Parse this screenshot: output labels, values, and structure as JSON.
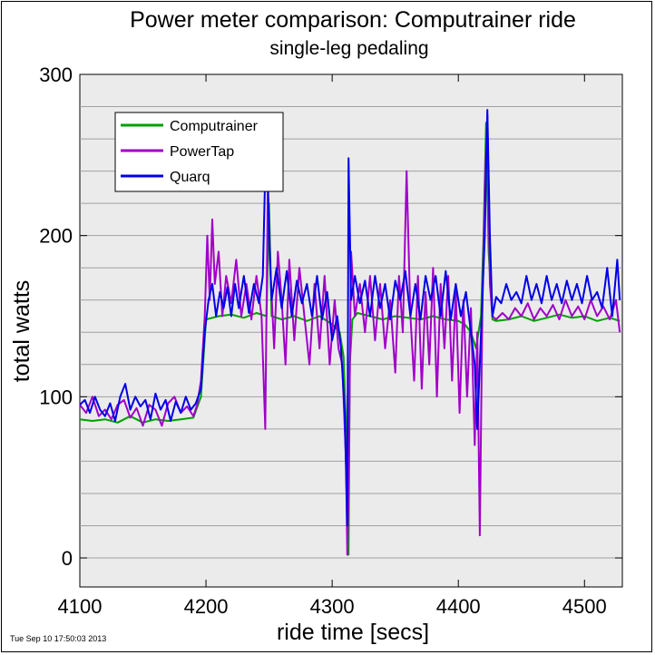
{
  "chart_data": {
    "type": "line",
    "title": "Power meter comparison: Computrainer ride",
    "subtitle": "single-leg pedaling",
    "xlabel": "ride time [secs]",
    "ylabel": "total watts",
    "xlim": [
      4100,
      4530
    ],
    "ylim": [
      -18,
      300
    ],
    "x_ticks": [
      4100,
      4200,
      4300,
      4400,
      4500
    ],
    "y_ticks": [
      0,
      100,
      200,
      300
    ],
    "y_gridlines": [
      0,
      20,
      40,
      60,
      80,
      100,
      120,
      140,
      160,
      180,
      200,
      220,
      240,
      260,
      280
    ],
    "grid": true,
    "legend_position": "top-left",
    "timestamp": "Tue Sep 10 17:50:03 2013",
    "series": [
      {
        "name": "Computrainer",
        "color": "#00a000",
        "points": [
          [
            4100,
            86
          ],
          [
            4110,
            85
          ],
          [
            4120,
            86
          ],
          [
            4130,
            84
          ],
          [
            4140,
            88
          ],
          [
            4150,
            84
          ],
          [
            4160,
            86
          ],
          [
            4170,
            85
          ],
          [
            4180,
            86
          ],
          [
            4190,
            87
          ],
          [
            4196,
            100
          ],
          [
            4200,
            148
          ],
          [
            4210,
            150
          ],
          [
            4220,
            151
          ],
          [
            4230,
            149
          ],
          [
            4240,
            152
          ],
          [
            4248,
            150
          ],
          [
            4250,
            220
          ],
          [
            4252,
            150
          ],
          [
            4260,
            148
          ],
          [
            4270,
            150
          ],
          [
            4280,
            147
          ],
          [
            4290,
            150
          ],
          [
            4300,
            145
          ],
          [
            4306,
            140
          ],
          [
            4309,
            125
          ],
          [
            4312,
            60
          ],
          [
            4313,
            2
          ],
          [
            4314,
            120
          ],
          [
            4316,
            148
          ],
          [
            4320,
            152
          ],
          [
            4330,
            150
          ],
          [
            4340,
            148
          ],
          [
            4350,
            150
          ],
          [
            4360,
            149
          ],
          [
            4370,
            148
          ],
          [
            4380,
            150
          ],
          [
            4390,
            148
          ],
          [
            4400,
            147
          ],
          [
            4405,
            145
          ],
          [
            4410,
            140
          ],
          [
            4414,
            130
          ],
          [
            4418,
            150
          ],
          [
            4420,
            200
          ],
          [
            4422,
            270
          ],
          [
            4424,
            190
          ],
          [
            4427,
            148
          ],
          [
            4430,
            147
          ],
          [
            4440,
            148
          ],
          [
            4450,
            150
          ],
          [
            4460,
            147
          ],
          [
            4470,
            149
          ],
          [
            4480,
            151
          ],
          [
            4490,
            149
          ],
          [
            4500,
            150
          ],
          [
            4510,
            147
          ],
          [
            4520,
            149
          ],
          [
            4528,
            147
          ]
        ]
      },
      {
        "name": "PowerTap",
        "color": "#a000c8",
        "points": [
          [
            4100,
            95
          ],
          [
            4105,
            90
          ],
          [
            4110,
            100
          ],
          [
            4115,
            88
          ],
          [
            4120,
            92
          ],
          [
            4125,
            86
          ],
          [
            4130,
            95
          ],
          [
            4135,
            98
          ],
          [
            4140,
            87
          ],
          [
            4145,
            93
          ],
          [
            4150,
            82
          ],
          [
            4155,
            95
          ],
          [
            4160,
            92
          ],
          [
            4165,
            82
          ],
          [
            4170,
            96
          ],
          [
            4175,
            100
          ],
          [
            4180,
            90
          ],
          [
            4185,
            94
          ],
          [
            4190,
            88
          ],
          [
            4193,
            95
          ],
          [
            4196,
            110
          ],
          [
            4199,
            150
          ],
          [
            4201,
            200
          ],
          [
            4203,
            160
          ],
          [
            4205,
            210
          ],
          [
            4207,
            170
          ],
          [
            4210,
            190
          ],
          [
            4213,
            150
          ],
          [
            4216,
            175
          ],
          [
            4220,
            158
          ],
          [
            4224,
            185
          ],
          [
            4228,
            150
          ],
          [
            4232,
            170
          ],
          [
            4236,
            148
          ],
          [
            4240,
            175
          ],
          [
            4244,
            150
          ],
          [
            4247,
            80
          ],
          [
            4249,
            230
          ],
          [
            4251,
            180
          ],
          [
            4254,
            130
          ],
          [
            4257,
            190
          ],
          [
            4260,
            160
          ],
          [
            4263,
            120
          ],
          [
            4266,
            185
          ],
          [
            4270,
            135
          ],
          [
            4274,
            180
          ],
          [
            4278,
            150
          ],
          [
            4282,
            120
          ],
          [
            4286,
            170
          ],
          [
            4290,
            130
          ],
          [
            4294,
            175
          ],
          [
            4298,
            120
          ],
          [
            4302,
            160
          ],
          [
            4305,
            130
          ],
          [
            4308,
            120
          ],
          [
            4311,
            60
          ],
          [
            4312,
            2
          ],
          [
            4313,
            40
          ],
          [
            4315,
            190
          ],
          [
            4318,
            150
          ],
          [
            4322,
            170
          ],
          [
            4326,
            140
          ],
          [
            4330,
            175
          ],
          [
            4334,
            135
          ],
          [
            4338,
            170
          ],
          [
            4342,
            130
          ],
          [
            4346,
            160
          ],
          [
            4350,
            115
          ],
          [
            4353,
            175
          ],
          [
            4356,
            140
          ],
          [
            4359,
            240
          ],
          [
            4362,
            150
          ],
          [
            4365,
            110
          ],
          [
            4368,
            175
          ],
          [
            4371,
            105
          ],
          [
            4374,
            165
          ],
          [
            4377,
            120
          ],
          [
            4380,
            180
          ],
          [
            4383,
            100
          ],
          [
            4386,
            170
          ],
          [
            4389,
            130
          ],
          [
            4392,
            175
          ],
          [
            4395,
            110
          ],
          [
            4398,
            165
          ],
          [
            4401,
            90
          ],
          [
            4404,
            160
          ],
          [
            4407,
            100
          ],
          [
            4410,
            155
          ],
          [
            4413,
            70
          ],
          [
            4415,
            140
          ],
          [
            4417,
            14
          ],
          [
            4419,
            150
          ],
          [
            4421,
            230
          ],
          [
            4423,
            275
          ],
          [
            4425,
            170
          ],
          [
            4427,
            150
          ],
          [
            4430,
            148
          ],
          [
            4435,
            152
          ],
          [
            4440,
            148
          ],
          [
            4445,
            155
          ],
          [
            4450,
            150
          ],
          [
            4455,
            158
          ],
          [
            4460,
            148
          ],
          [
            4465,
            155
          ],
          [
            4470,
            150
          ],
          [
            4475,
            157
          ],
          [
            4480,
            148
          ],
          [
            4485,
            160
          ],
          [
            4490,
            150
          ],
          [
            4495,
            156
          ],
          [
            4500,
            148
          ],
          [
            4505,
            160
          ],
          [
            4510,
            150
          ],
          [
            4515,
            156
          ],
          [
            4520,
            148
          ],
          [
            4525,
            160
          ],
          [
            4528,
            140
          ]
        ]
      },
      {
        "name": "Quarq",
        "color": "#0000e6",
        "points": [
          [
            4100,
            95
          ],
          [
            4104,
            98
          ],
          [
            4108,
            90
          ],
          [
            4112,
            100
          ],
          [
            4116,
            92
          ],
          [
            4120,
            88
          ],
          [
            4124,
            96
          ],
          [
            4128,
            85
          ],
          [
            4132,
            100
          ],
          [
            4136,
            108
          ],
          [
            4140,
            92
          ],
          [
            4144,
            100
          ],
          [
            4148,
            94
          ],
          [
            4152,
            98
          ],
          [
            4156,
            86
          ],
          [
            4160,
            102
          ],
          [
            4164,
            92
          ],
          [
            4168,
            98
          ],
          [
            4172,
            85
          ],
          [
            4176,
            97
          ],
          [
            4180,
            90
          ],
          [
            4184,
            100
          ],
          [
            4188,
            92
          ],
          [
            4192,
            96
          ],
          [
            4196,
            105
          ],
          [
            4199,
            140
          ],
          [
            4202,
            160
          ],
          [
            4205,
            170
          ],
          [
            4208,
            150
          ],
          [
            4211,
            165
          ],
          [
            4214,
            155
          ],
          [
            4217,
            168
          ],
          [
            4220,
            150
          ],
          [
            4223,
            170
          ],
          [
            4226,
            155
          ],
          [
            4230,
            175
          ],
          [
            4234,
            152
          ],
          [
            4238,
            170
          ],
          [
            4242,
            158
          ],
          [
            4245,
            175
          ],
          [
            4248,
            275
          ],
          [
            4250,
            200
          ],
          [
            4252,
            160
          ],
          [
            4256,
            180
          ],
          [
            4260,
            155
          ],
          [
            4264,
            178
          ],
          [
            4268,
            150
          ],
          [
            4272,
            172
          ],
          [
            4276,
            158
          ],
          [
            4280,
            170
          ],
          [
            4284,
            150
          ],
          [
            4288,
            175
          ],
          [
            4292,
            148
          ],
          [
            4296,
            165
          ],
          [
            4300,
            135
          ],
          [
            4304,
            150
          ],
          [
            4307,
            130
          ],
          [
            4310,
            90
          ],
          [
            4312,
            20
          ],
          [
            4313,
            248
          ],
          [
            4315,
            160
          ],
          [
            4318,
            175
          ],
          [
            4322,
            158
          ],
          [
            4326,
            172
          ],
          [
            4330,
            150
          ],
          [
            4334,
            175
          ],
          [
            4338,
            155
          ],
          [
            4342,
            170
          ],
          [
            4346,
            148
          ],
          [
            4350,
            172
          ],
          [
            4354,
            160
          ],
          [
            4358,
            178
          ],
          [
            4362,
            150
          ],
          [
            4366,
            170
          ],
          [
            4370,
            148
          ],
          [
            4374,
            175
          ],
          [
            4378,
            160
          ],
          [
            4382,
            175
          ],
          [
            4386,
            150
          ],
          [
            4390,
            178
          ],
          [
            4394,
            148
          ],
          [
            4398,
            170
          ],
          [
            4402,
            150
          ],
          [
            4406,
            165
          ],
          [
            4410,
            140
          ],
          [
            4413,
            120
          ],
          [
            4415,
            80
          ],
          [
            4417,
            120
          ],
          [
            4419,
            160
          ],
          [
            4421,
            200
          ],
          [
            4423,
            278
          ],
          [
            4425,
            200
          ],
          [
            4427,
            150
          ],
          [
            4430,
            162
          ],
          [
            4434,
            158
          ],
          [
            4438,
            170
          ],
          [
            4442,
            160
          ],
          [
            4446,
            165
          ],
          [
            4450,
            158
          ],
          [
            4454,
            175
          ],
          [
            4458,
            160
          ],
          [
            4462,
            170
          ],
          [
            4466,
            158
          ],
          [
            4470,
            175
          ],
          [
            4474,
            160
          ],
          [
            4478,
            170
          ],
          [
            4482,
            158
          ],
          [
            4486,
            172
          ],
          [
            4490,
            160
          ],
          [
            4494,
            170
          ],
          [
            4498,
            158
          ],
          [
            4502,
            175
          ],
          [
            4506,
            160
          ],
          [
            4510,
            165
          ],
          [
            4514,
            155
          ],
          [
            4518,
            180
          ],
          [
            4522,
            150
          ],
          [
            4526,
            185
          ],
          [
            4528,
            160
          ]
        ]
      }
    ]
  }
}
